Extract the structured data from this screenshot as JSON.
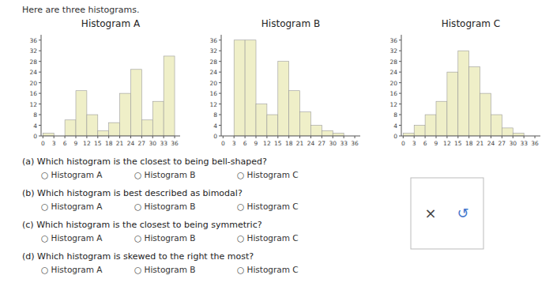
{
  "title": "Here are three histograms.",
  "annotations": [
    "(a) Which histogram is the closest to being bell-shaped?",
    "(b) Which histogram is best described as bimodal?",
    "(c) Which histogram is the closest to being symmetric?",
    "(d) Which histogram is skewed to the right the most?"
  ],
  "options": [
    "○  Histogram A",
    "○  Histogram B",
    "○  Histogram C"
  ],
  "buttons": [
    "×",
    "↺"
  ],
  "chart_data": [
    {
      "type": "histogram",
      "title": "Histogram A",
      "bins": [
        0,
        3,
        6,
        9,
        12,
        15,
        18,
        21,
        24,
        27,
        30,
        33,
        36
      ],
      "values": [
        1,
        0,
        6,
        17,
        8,
        2,
        5,
        16,
        25,
        6,
        13,
        30
      ],
      "color": "#efefc8",
      "xlim": [
        -0.5,
        37.5
      ],
      "xticks": [
        0,
        3,
        6,
        9,
        12,
        15,
        18,
        21,
        24,
        27,
        30,
        33,
        36
      ],
      "ylim": [
        0,
        38
      ],
      "yticks": [
        0,
        4,
        8,
        12,
        16,
        20,
        24,
        28,
        32,
        36
      ],
      "grid": false
    },
    {
      "type": "histogram",
      "title": "Histogram B",
      "bins": [
        0,
        3,
        6,
        9,
        12,
        15,
        18,
        21,
        24,
        27,
        30,
        33,
        36
      ],
      "values": [
        0,
        36,
        36,
        12,
        8,
        28,
        17,
        9,
        4,
        2,
        1,
        0
      ],
      "color": "#efefc8",
      "xlim": [
        -0.5,
        37.5
      ],
      "xticks": [
        0,
        3,
        6,
        9,
        12,
        15,
        18,
        21,
        24,
        27,
        30,
        33,
        36
      ],
      "ylim": [
        0,
        38
      ],
      "yticks": [
        0,
        4,
        8,
        12,
        16,
        20,
        24,
        28,
        32,
        36
      ],
      "grid": false
    },
    {
      "type": "histogram",
      "title": "Histogram C",
      "bins": [
        0,
        3,
        6,
        9,
        12,
        15,
        18,
        21,
        24,
        27,
        30,
        33,
        36
      ],
      "values": [
        1,
        4,
        8,
        13,
        24,
        32,
        26,
        16,
        8,
        3,
        1,
        0
      ],
      "color": "#efefc8",
      "xlim": [
        -0.5,
        37.5
      ],
      "xticks": [
        0,
        3,
        6,
        9,
        12,
        15,
        18,
        21,
        24,
        27,
        30,
        33,
        36
      ],
      "ylim": [
        0,
        38
      ],
      "yticks": [
        0,
        4,
        8,
        12,
        16,
        20,
        24,
        28,
        32,
        36
      ],
      "grid": false
    }
  ]
}
